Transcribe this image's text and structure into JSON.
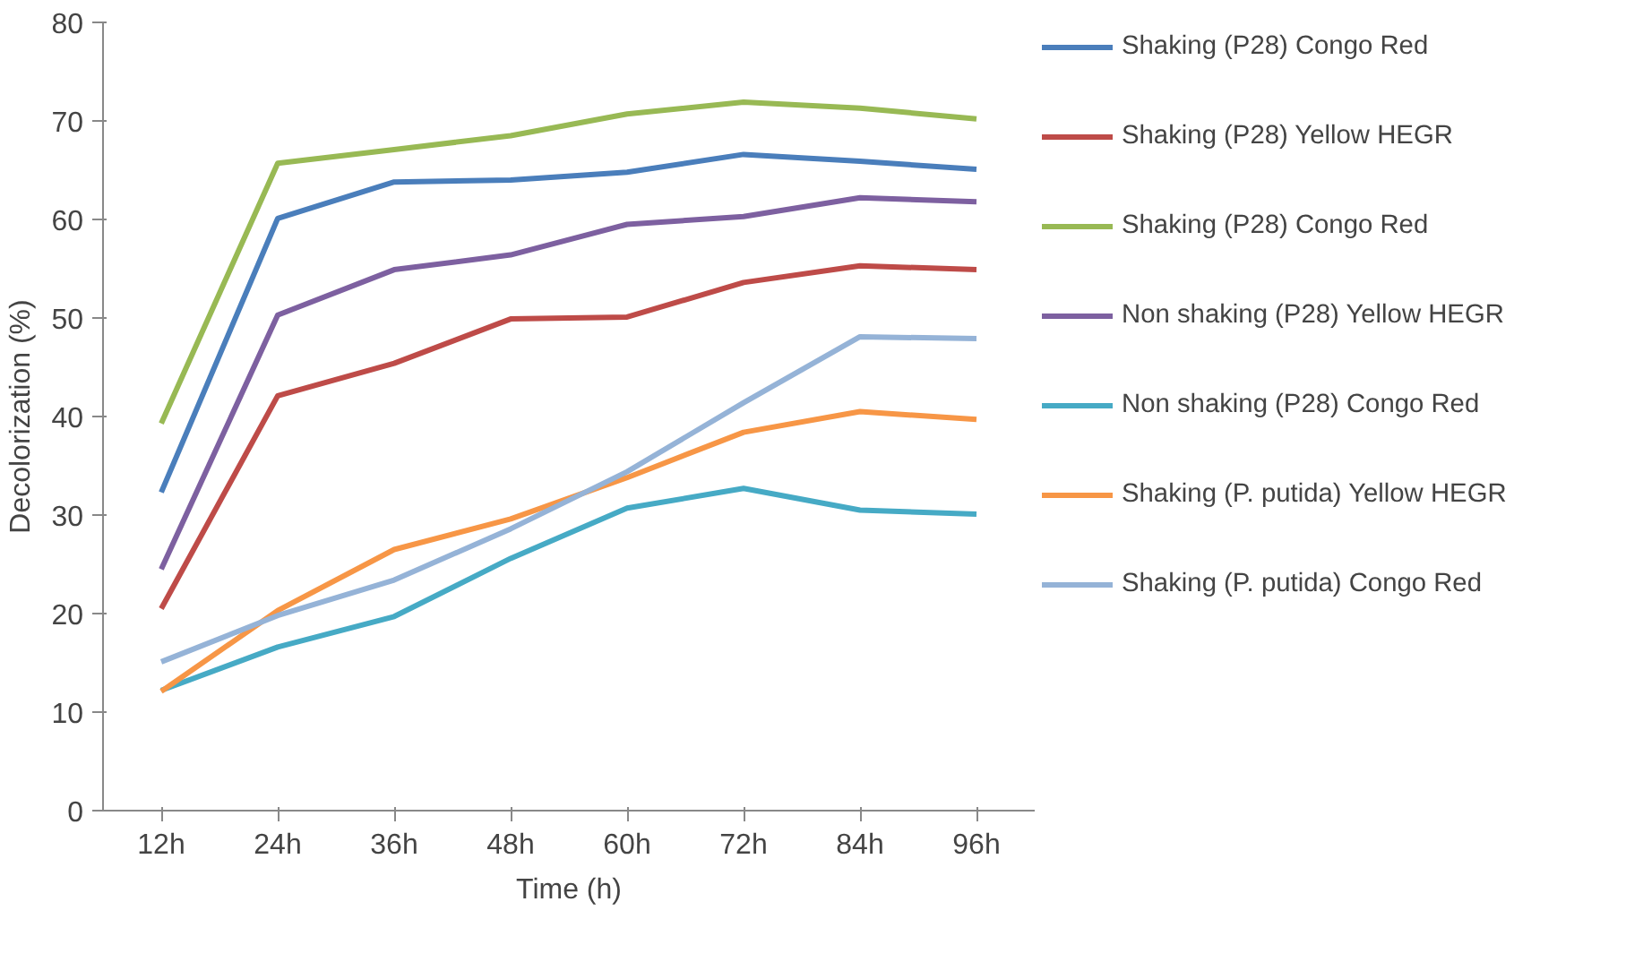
{
  "chart_data": {
    "type": "line",
    "xlabel": "Time (h)",
    "ylabel": "Decolorization (%)",
    "categories": [
      "12h",
      "24h",
      "36h",
      "48h",
      "60h",
      "72h",
      "84h",
      "96h"
    ],
    "ylim": [
      0,
      80
    ],
    "yticks": [
      0,
      10,
      20,
      30,
      40,
      50,
      60,
      70,
      80
    ],
    "grid": false,
    "legend": "right",
    "marker": "none",
    "line_style": "solid",
    "series": [
      {
        "name": "Shaking (P28) Congo Red",
        "color": "#4a7ebb",
        "values": [
          32.3,
          60.1,
          63.8,
          64.0,
          64.8,
          66.6,
          65.9,
          65.1
        ]
      },
      {
        "name": "Shaking (P28) Yellow HEGR",
        "color": "#be4b48",
        "values": [
          20.5,
          42.1,
          45.4,
          49.9,
          50.1,
          53.6,
          55.3,
          54.9
        ]
      },
      {
        "name": "Shaking (P28) Congo Red",
        "color": "#98b954",
        "values": [
          39.3,
          65.7,
          67.1,
          68.5,
          70.7,
          71.9,
          71.3,
          70.2
        ]
      },
      {
        "name": "Non shaking (P28) Yellow HEGR",
        "color": "#7d60a0",
        "values": [
          24.5,
          50.3,
          54.9,
          56.4,
          59.5,
          60.3,
          62.2,
          61.8
        ]
      },
      {
        "name": "Non shaking (P28) Congo Red",
        "color": "#46aac5",
        "values": [
          12.2,
          16.6,
          19.7,
          25.6,
          30.7,
          32.7,
          30.5,
          30.1
        ]
      },
      {
        "name": "Shaking (P. putida) Yellow HEGR",
        "color": "#f79646",
        "values": [
          12.1,
          20.3,
          26.5,
          29.6,
          33.8,
          38.4,
          40.5,
          39.7
        ]
      },
      {
        "name": "Shaking (P. putida) Congo Red",
        "color": "#95b3d7",
        "values": [
          15.1,
          19.8,
          23.4,
          28.6,
          34.4,
          41.4,
          48.1,
          47.9
        ]
      }
    ]
  }
}
